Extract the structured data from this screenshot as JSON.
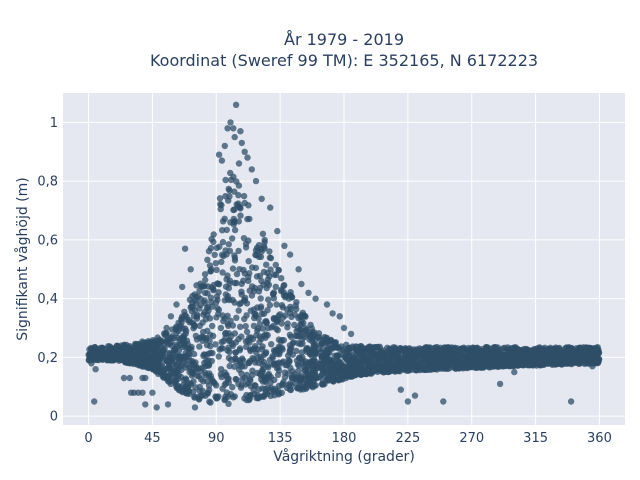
{
  "chart_data": {
    "type": "scatter",
    "title_line1": "År 1979 - 2019",
    "title_line2": "Koordinat (Sweref 99 TM): E 352165, N 6172223",
    "xlabel": "Vågriktning (grader)",
    "ylabel": "Signifikant våghöjd (m)",
    "xlim": [
      -18,
      378
    ],
    "ylim": [
      -0.03,
      1.1
    ],
    "x_ticks": [
      0,
      45,
      90,
      135,
      180,
      225,
      270,
      315,
      360
    ],
    "x_tick_labels": [
      "0",
      "45",
      "90",
      "135",
      "180",
      "225",
      "270",
      "315",
      "360"
    ],
    "y_ticks": [
      0,
      0.2,
      0.4,
      0.6,
      0.8,
      1.0
    ],
    "y_tick_labels": [
      "0",
      "0,2",
      "0,4",
      "0,6",
      "0,8",
      "1"
    ],
    "grid": true,
    "marker_color": "#2f4f68",
    "plot_background": "#e5e8f1",
    "series": [
      {
        "band_x": [
          0,
          20,
          45,
          60,
          70,
          80,
          88,
          95,
          100,
          105,
          110,
          120,
          130,
          140,
          150,
          160,
          175,
          190,
          210,
          250,
          300,
          360
        ],
        "band_ymin": [
          0.19,
          0.19,
          0.16,
          0.1,
          0.07,
          0.05,
          0.04,
          0.04,
          0.04,
          0.04,
          0.05,
          0.06,
          0.07,
          0.08,
          0.09,
          0.1,
          0.12,
          0.14,
          0.15,
          0.16,
          0.17,
          0.18
        ],
        "band_ymax": [
          0.235,
          0.24,
          0.26,
          0.3,
          0.38,
          0.5,
          0.65,
          0.8,
          0.83,
          0.8,
          0.75,
          0.65,
          0.55,
          0.45,
          0.36,
          0.29,
          0.25,
          0.24,
          0.235,
          0.235,
          0.235,
          0.235
        ],
        "outliers": [
          [
            104,
            1.06
          ],
          [
            102,
            0.98
          ],
          [
            100,
            1.0
          ],
          [
            98,
            0.98
          ],
          [
            107,
            0.97
          ],
          [
            103,
            0.95
          ],
          [
            108,
            0.93
          ],
          [
            96,
            0.92
          ],
          [
            110,
            0.9
          ],
          [
            92,
            0.89
          ],
          [
            112,
            0.88
          ],
          [
            94,
            0.87
          ],
          [
            106,
            0.86
          ],
          [
            115,
            0.84
          ],
          [
            118,
            0.8
          ],
          [
            122,
            0.74
          ],
          [
            128,
            0.71
          ],
          [
            133,
            0.63
          ],
          [
            138,
            0.58
          ],
          [
            142,
            0.55
          ],
          [
            148,
            0.5
          ],
          [
            150,
            0.45
          ],
          [
            155,
            0.42
          ],
          [
            160,
            0.4
          ],
          [
            168,
            0.38
          ],
          [
            172,
            0.35
          ],
          [
            177,
            0.34
          ],
          [
            180,
            0.3
          ],
          [
            185,
            0.28
          ],
          [
            68,
            0.57
          ],
          [
            72,
            0.5
          ],
          [
            66,
            0.44
          ],
          [
            62,
            0.38
          ],
          [
            58,
            0.34
          ],
          [
            55,
            0.3
          ],
          [
            4,
            0.05
          ],
          [
            25,
            0.13
          ],
          [
            29,
            0.13
          ],
          [
            38,
            0.13
          ],
          [
            40,
            0.13
          ],
          [
            30,
            0.08
          ],
          [
            32,
            0.08
          ],
          [
            35,
            0.08
          ],
          [
            38,
            0.08
          ],
          [
            45,
            0.08
          ],
          [
            48,
            0.03
          ],
          [
            40,
            0.04
          ],
          [
            56,
            0.04
          ],
          [
            75,
            0.03
          ],
          [
            225,
            0.05
          ],
          [
            220,
            0.09
          ],
          [
            230,
            0.07
          ],
          [
            250,
            0.05
          ],
          [
            290,
            0.11
          ],
          [
            340,
            0.05
          ],
          [
            300,
            0.15
          ],
          [
            355,
            0.17
          ],
          [
            357,
            0.18
          ],
          [
            5,
            0.16
          ],
          [
            2,
            0.18
          ]
        ]
      }
    ]
  }
}
